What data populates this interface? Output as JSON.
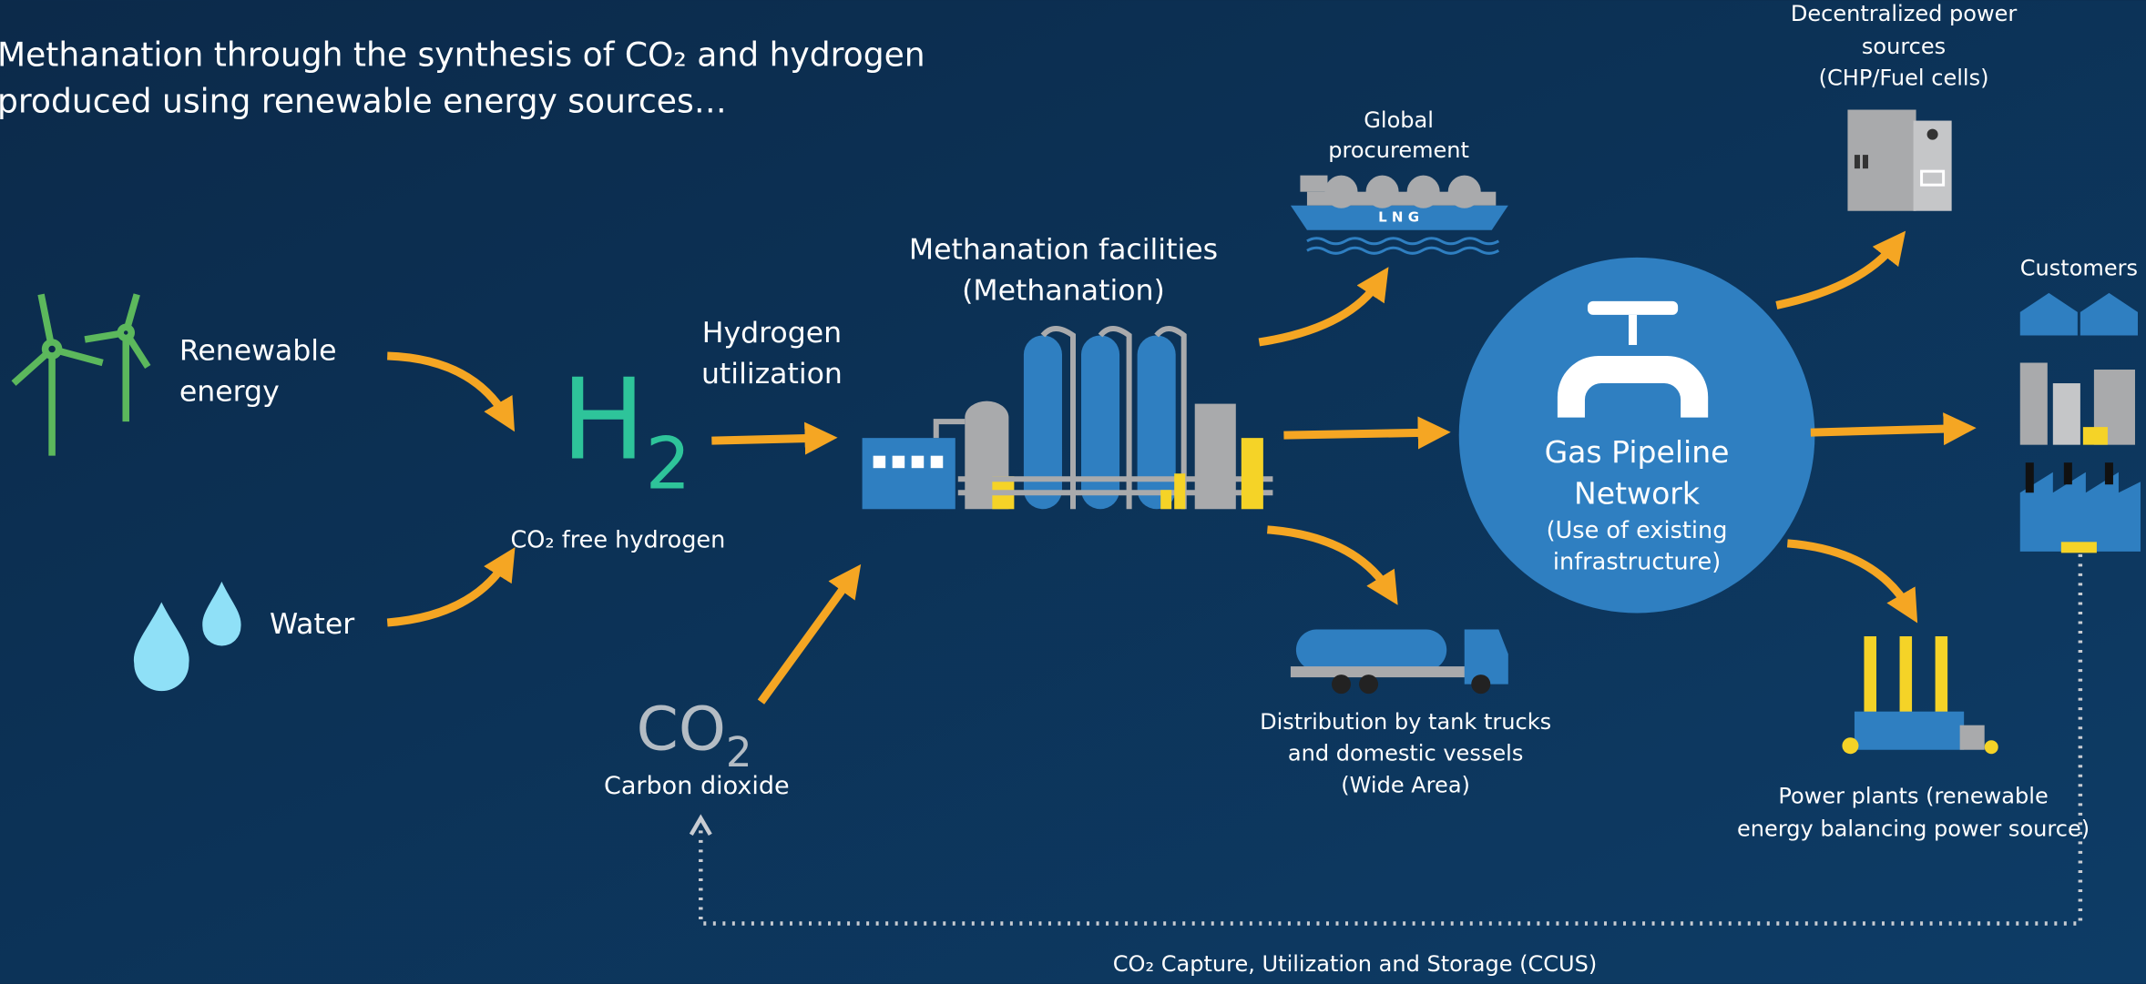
{
  "intro": [
    "Methanation through the synthesis of CO₂ and hydrogen",
    "produced using renewable energy sources…"
  ],
  "renewable": [
    "Renewable",
    "energy"
  ],
  "water": "Water",
  "h2": {
    "main": "H",
    "sub": "2"
  },
  "h2_caption": "CO₂ free hydrogen",
  "hydrogen_utilization": [
    "Hydrogen",
    "utilization"
  ],
  "methanation": [
    "Methanation facilities",
    "(Methanation)"
  ],
  "co2": {
    "main": "CO",
    "sub": "2"
  },
  "co2_caption": "Carbon dioxide",
  "global": [
    "Global",
    "procurement"
  ],
  "decentralized": [
    "Decentralized power",
    "sources",
    "(CHP/Fuel cells)"
  ],
  "customers": "Customers",
  "pipeline": {
    "title": [
      "Gas Pipeline",
      "Network"
    ],
    "note": [
      "(Use of existing",
      "infrastructure)"
    ]
  },
  "distribution": [
    "Distribution by tank trucks",
    "and domestic vessels",
    "(Wide Area)"
  ],
  "power_plants": [
    "Power plants (renewable",
    "energy balancing power source)"
  ],
  "ship_label": "L N G",
  "ccus": "CO₂ Capture, Utilization and Storage (CCUS)"
}
